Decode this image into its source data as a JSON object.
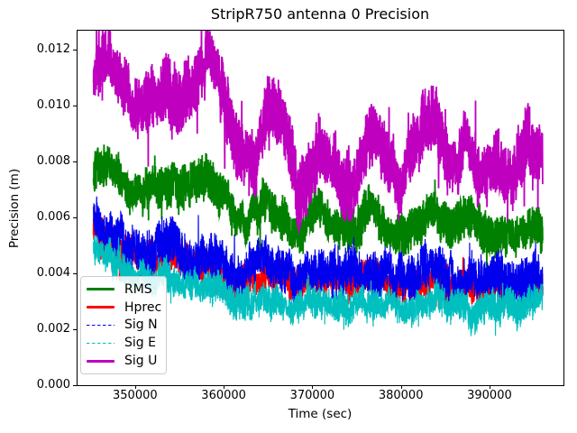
{
  "figure": {
    "background": "#ffffff",
    "frame_color": "#000000",
    "text_color": "#000000"
  },
  "chart_data": {
    "type": "line",
    "title": "StripR750 antenna 0 Precision",
    "xlabel": "Time (sec)",
    "ylabel": "Precision (m)",
    "grid": false,
    "legend_position": "lower left",
    "xlim": [
      343400,
      398350
    ],
    "ylim": [
      0,
      0.01271
    ],
    "x_data_range": [
      345300,
      396000
    ],
    "xticks": {
      "values": [
        350000,
        360000,
        370000,
        380000,
        390000
      ],
      "labels": [
        "350000",
        "360000",
        "370000",
        "380000",
        "390000"
      ]
    },
    "yticks": {
      "values": [
        0,
        0.002,
        0.004,
        0.006,
        0.008,
        0.01,
        0.012
      ],
      "labels": [
        "0.000",
        "0.002",
        "0.004",
        "0.006",
        "0.008",
        "0.010",
        "0.012"
      ]
    },
    "series": [
      {
        "name": "RMS",
        "color": "#008000",
        "style": "solid",
        "linewidth": 2,
        "noise_halfband": 0.0006,
        "keypoints": {
          "t": [
            345300,
            346500,
            348000,
            349500,
            351000,
            352500,
            354000,
            355500,
            357000,
            358200,
            359300,
            360400,
            361500,
            362600,
            363700,
            364800,
            366000,
            367300,
            368400,
            369600,
            370800,
            372000,
            373200,
            374400,
            375500,
            376600,
            377800,
            378900,
            380000,
            381200,
            382300,
            383400,
            384500,
            385600,
            386800,
            387900,
            389000,
            390100,
            391200,
            392400,
            393500,
            394700,
            396000
          ],
          "v": [
            0.0079,
            0.0081,
            0.0076,
            0.0071,
            0.007,
            0.0073,
            0.0072,
            0.007,
            0.0075,
            0.0077,
            0.0071,
            0.0066,
            0.0061,
            0.0057,
            0.0064,
            0.0067,
            0.0063,
            0.0058,
            0.0054,
            0.0059,
            0.0061,
            0.0059,
            0.0056,
            0.0054,
            0.0059,
            0.0063,
            0.0059,
            0.0055,
            0.0051,
            0.0056,
            0.006,
            0.0063,
            0.0058,
            0.0053,
            0.0057,
            0.006,
            0.0055,
            0.0051,
            0.0053,
            0.0055,
            0.0054,
            0.0056,
            0.0054
          ]
        }
      },
      {
        "name": "Hprec",
        "color": "#ff0000",
        "style": "solid",
        "linewidth": 2,
        "noise_halfband": 0.00045,
        "keypoints": {
          "t": [
            345300,
            346500,
            348000,
            349500,
            351000,
            352500,
            354000,
            355500,
            357000,
            358500,
            360000,
            361200,
            362400,
            363600,
            364800,
            366000,
            367500,
            369000,
            370500,
            372000,
            373500,
            375000,
            376500,
            378000,
            379500,
            381000,
            382500,
            384000,
            385500,
            387000,
            388500,
            390000,
            391500,
            393000,
            394500,
            396000
          ],
          "v": [
            0.0056,
            0.0053,
            0.0049,
            0.0047,
            0.0046,
            0.0046,
            0.0047,
            0.0044,
            0.0043,
            0.0041,
            0.0038,
            0.0036,
            0.0037,
            0.0038,
            0.004,
            0.004,
            0.0038,
            0.0037,
            0.0038,
            0.0039,
            0.0036,
            0.0037,
            0.0039,
            0.0037,
            0.0034,
            0.0035,
            0.0038,
            0.0038,
            0.0035,
            0.0036,
            0.0035,
            0.0034,
            0.0035,
            0.0034,
            0.0035,
            0.0036
          ]
        }
      },
      {
        "name": "Sig N",
        "color": "#0000ee",
        "style": "dashed",
        "linewidth": 1,
        "noise_halfband": 0.00065,
        "keypoints": {
          "t": [
            345300,
            346500,
            348000,
            349500,
            351000,
            352500,
            354000,
            355500,
            357000,
            358500,
            360000,
            361500,
            363000,
            364500,
            366000,
            367500,
            369000,
            370500,
            372000,
            373500,
            375000,
            376500,
            378000,
            379500,
            381000,
            382500,
            384000,
            385500,
            387000,
            388500,
            390000,
            391500,
            393000,
            394500,
            396000
          ],
          "v": [
            0.0059,
            0.0057,
            0.0052,
            0.0049,
            0.0047,
            0.0048,
            0.005,
            0.0047,
            0.0046,
            0.0044,
            0.0043,
            0.004,
            0.0041,
            0.0044,
            0.0042,
            0.004,
            0.0039,
            0.004,
            0.0041,
            0.0038,
            0.004,
            0.0042,
            0.004,
            0.0038,
            0.0039,
            0.0041,
            0.004,
            0.0037,
            0.0038,
            0.0037,
            0.0035,
            0.0039,
            0.0038,
            0.0039,
            0.0041
          ]
        }
      },
      {
        "name": "Sig E",
        "color": "#00bfbf",
        "style": "dashed",
        "linewidth": 1,
        "noise_halfband": 0.00045,
        "keypoints": {
          "t": [
            345300,
            346500,
            348000,
            349500,
            351000,
            352500,
            354000,
            355500,
            357000,
            358500,
            360000,
            361400,
            362500,
            364000,
            365500,
            367000,
            368500,
            370000,
            371500,
            373000,
            374500,
            376000,
            377500,
            379000,
            380500,
            382000,
            383500,
            385000,
            386500,
            388300,
            389500,
            390700,
            392000,
            393500,
            395000,
            396000
          ],
          "v": [
            0.0051,
            0.0048,
            0.0043,
            0.004,
            0.0039,
            0.0038,
            0.0039,
            0.0037,
            0.0036,
            0.0035,
            0.0034,
            0.0029,
            0.0031,
            0.003,
            0.0029,
            0.0029,
            0.0028,
            0.003,
            0.0031,
            0.0029,
            0.0028,
            0.003,
            0.0031,
            0.0029,
            0.0028,
            0.0029,
            0.0031,
            0.0029,
            0.0028,
            0.0024,
            0.0027,
            0.0028,
            0.0028,
            0.0027,
            0.0029,
            0.003
          ]
        }
      },
      {
        "name": "Sig U",
        "color": "#bf00bf",
        "style": "solid",
        "linewidth": 2,
        "noise_halfband": 0.0009,
        "keypoints": {
          "t": [
            345300,
            346300,
            347100,
            348100,
            349300,
            350600,
            352000,
            353500,
            355000,
            356300,
            357400,
            358300,
            359300,
            360400,
            361600,
            362800,
            363500,
            364400,
            365000,
            365700,
            366600,
            367600,
            368400,
            369400,
            370400,
            371400,
            372400,
            373400,
            374400,
            375500,
            376400,
            377100,
            377900,
            378800,
            379700,
            380600,
            381600,
            382600,
            383600,
            384400,
            385400,
            386400,
            387300,
            388300,
            389300,
            390300,
            391300,
            392300,
            393300,
            394300,
            395100,
            396000
          ],
          "v": [
            0.0107,
            0.0116,
            0.0113,
            0.0107,
            0.0103,
            0.0102,
            0.0105,
            0.0103,
            0.0104,
            0.0108,
            0.0114,
            0.0116,
            0.0108,
            0.0098,
            0.0088,
            0.0078,
            0.0076,
            0.0095,
            0.0104,
            0.01,
            0.0093,
            0.0082,
            0.007,
            0.0076,
            0.0081,
            0.0083,
            0.008,
            0.0074,
            0.0071,
            0.0083,
            0.0092,
            0.0094,
            0.0088,
            0.0082,
            0.0072,
            0.0077,
            0.0086,
            0.009,
            0.0095,
            0.009,
            0.0077,
            0.008,
            0.0087,
            0.008,
            0.0073,
            0.0076,
            0.0078,
            0.0075,
            0.008,
            0.0086,
            0.0082,
            0.0078
          ]
        }
      }
    ]
  }
}
